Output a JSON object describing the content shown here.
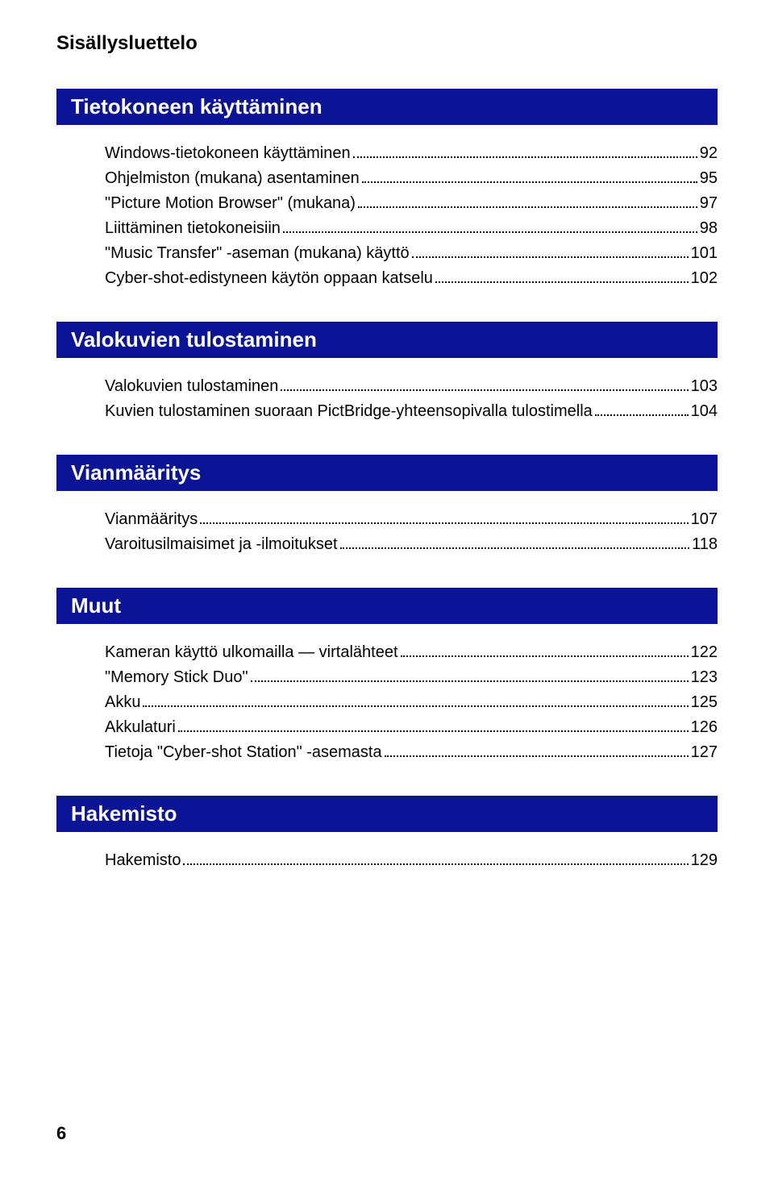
{
  "header": "Sisällysluettelo",
  "colors": {
    "section_bg": "#0b1495",
    "section_fg": "#ffffff",
    "text": "#000000",
    "page_bg": "#ffffff"
  },
  "fonts": {
    "header_size_pt": 18,
    "section_size_pt": 19,
    "entry_size_pt": 15
  },
  "sections": [
    {
      "title": "Tietokoneen käyttäminen",
      "entries": [
        {
          "label": "Windows-tietokoneen käyttäminen",
          "page": "92"
        },
        {
          "label": "Ohjelmiston (mukana) asentaminen",
          "page": "95"
        },
        {
          "label": "\"Picture Motion Browser\" (mukana)",
          "page": "97"
        },
        {
          "label": "Liittäminen tietokoneisiin",
          "page": "98"
        },
        {
          "label": "\"Music Transfer\" -aseman (mukana) käyttö",
          "page": "101"
        },
        {
          "label": "Cyber-shot-edistyneen käytön oppaan katselu",
          "page": "102"
        }
      ]
    },
    {
      "title": "Valokuvien tulostaminen",
      "entries": [
        {
          "label": "Valokuvien tulostaminen",
          "page": "103"
        },
        {
          "label": "Kuvien tulostaminen suoraan PictBridge-yhteensopivalla tulostimella",
          "page": "104"
        }
      ]
    },
    {
      "title": "Vianmääritys",
      "entries": [
        {
          "label": "Vianmääritys",
          "page": "107"
        },
        {
          "label": "Varoitusilmaisimet ja -ilmoitukset",
          "page": "118"
        }
      ]
    },
    {
      "title": "Muut",
      "entries": [
        {
          "label": "Kameran käyttö ulkomailla — virtalähteet",
          "page": "122"
        },
        {
          "label": "\"Memory Stick Duo\"",
          "page": "123"
        },
        {
          "label": "Akku",
          "page": "125"
        },
        {
          "label": "Akkulaturi",
          "page": "126"
        },
        {
          "label": "Tietoja \"Cyber-shot Station\" -asemasta",
          "page": "127"
        }
      ]
    },
    {
      "title": "Hakemisto",
      "entries": [
        {
          "label": "Hakemisto",
          "page": "129"
        }
      ]
    }
  ],
  "footer": "6"
}
